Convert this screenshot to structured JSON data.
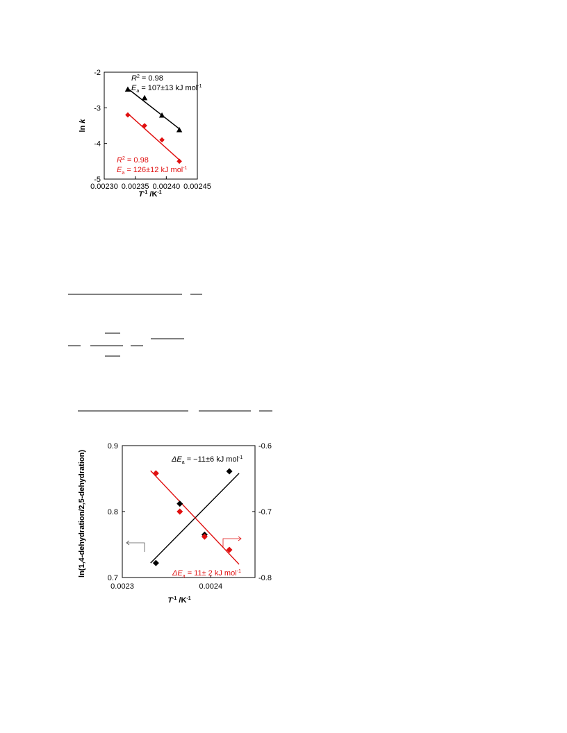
{
  "chart_data": [
    {
      "type": "scatter",
      "xlim": [
        0.0023,
        0.00245
      ],
      "ylim": [
        -5,
        -2
      ],
      "xticks": [
        "0.00230",
        "0.00235",
        "0.00240",
        "0.00245"
      ],
      "yticks": [
        "-2",
        "-3",
        "-4",
        "-5"
      ],
      "ylabel": {
        "main": "ln ",
        "italic": "k"
      },
      "xlabel": {
        "italic": "T",
        "sup": "-1",
        "rest": " /K",
        "sup2": "-1"
      },
      "series": [
        {
          "color": "#000000",
          "marker": "triangle",
          "x": [
            0.002338,
            0.002365,
            0.002393,
            0.002421
          ],
          "y": [
            -2.48,
            -2.72,
            -3.21,
            -3.62
          ],
          "fit": {
            "x": [
              0.002338,
              0.002421
            ],
            "y": [
              -2.46,
              -3.59
            ]
          },
          "r2": "= 0.98",
          "ea": "= 107±13 kJ mol",
          "ea_sup": "-1"
        },
        {
          "color": "#e01010",
          "marker": "diamond",
          "x": [
            0.002338,
            0.002365,
            0.002393,
            0.002421
          ],
          "y": [
            -3.2,
            -3.5,
            -3.9,
            -4.5
          ],
          "fit": {
            "x": [
              0.002338,
              0.002421
            ],
            "y": [
              -3.16,
              -4.46
            ]
          },
          "r2": "= 0.98",
          "ea": "= 126±12 kJ mol",
          "ea_sup": "-1"
        }
      ]
    },
    {
      "type": "scatter",
      "xlim": [
        0.0023,
        0.00245
      ],
      "ylim_left": [
        0.7,
        0.9
      ],
      "ylim_right": [
        -0.8,
        -0.6
      ],
      "xticks": [
        "0.0023",
        "0.0024"
      ],
      "yticks_left": [
        "0.9",
        "0.8",
        "0.7"
      ],
      "yticks_right": [
        "-0.6",
        "-0.7",
        "-0.8"
      ],
      "ylabel": "ln(1,4-dehydration/2,5-dehydration)",
      "xlabel": {
        "italic": "T",
        "sup": "-1",
        "rest": " /K",
        "sup2": "-1"
      },
      "series": [
        {
          "axis": "left",
          "color": "#000000",
          "marker": "diamond",
          "x": [
            0.002338,
            0.002365,
            0.002393,
            0.002421
          ],
          "y": [
            0.722,
            0.812,
            0.765,
            0.861
          ],
          "fit": {
            "x": [
              0.002332,
              0.002432
            ],
            "y": [
              0.722,
              0.858
            ]
          },
          "label": "= −11±6 kJ mol",
          "label_sup": "-1"
        },
        {
          "axis": "right",
          "color": "#e01010",
          "marker": "diamond",
          "x": [
            0.002338,
            0.002365,
            0.002393,
            0.002421
          ],
          "y": [
            -0.642,
            -0.7,
            -0.738,
            -0.758
          ],
          "fit": {
            "x": [
              0.002332,
              0.002432
            ],
            "y": [
              -0.638,
              -0.78
            ]
          },
          "label": "= 11± 2 kJ mol",
          "label_sup": "-1"
        }
      ]
    }
  ]
}
